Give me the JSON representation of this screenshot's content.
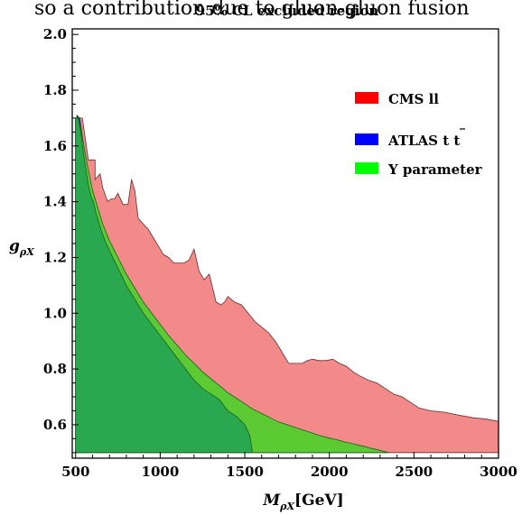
{
  "background_text": "so a contribution due to gluon-gluon fusion",
  "chart_data": {
    "type": "area",
    "title": "95% CL excluded region",
    "xlabel": "M",
    "xlabel_sub": "ρX",
    "xlabel_unit": "[GeV]",
    "ylabel": "g",
    "ylabel_sub": "ρX",
    "xlim": [
      480,
      3000
    ],
    "ylim": [
      0.48,
      2.02
    ],
    "x_ticks": [
      {
        "value": 500,
        "label": "500"
      },
      {
        "value": 1000,
        "label": "1000"
      },
      {
        "value": 1500,
        "label": "1500"
      },
      {
        "value": 2000,
        "label": "2000"
      },
      {
        "value": 2500,
        "label": "2500"
      },
      {
        "value": 3000,
        "label": "3000"
      }
    ],
    "y_ticks": [
      {
        "value": 0.6,
        "label": "0.6"
      },
      {
        "value": 0.8,
        "label": "0.8"
      },
      {
        "value": 1.0,
        "label": "1.0"
      },
      {
        "value": 1.2,
        "label": "1.2"
      },
      {
        "value": 1.4,
        "label": "1.4"
      },
      {
        "value": 1.6,
        "label": "1.6"
      },
      {
        "value": 1.8,
        "label": "1.8"
      },
      {
        "value": 2.0,
        "label": "2.0"
      }
    ],
    "grid": false,
    "legend_position": "top-right",
    "series": [
      {
        "name": "CMS ll",
        "color": "#ff0000",
        "fill": "#f28a8a",
        "points": [
          [
            500,
            0.5
          ],
          [
            500,
            1.7
          ],
          [
            540,
            1.7
          ],
          [
            575,
            1.55
          ],
          [
            615,
            1.55
          ],
          [
            615,
            1.48
          ],
          [
            645,
            1.5
          ],
          [
            660,
            1.45
          ],
          [
            690,
            1.4
          ],
          [
            710,
            1.41
          ],
          [
            730,
            1.41
          ],
          [
            750,
            1.43
          ],
          [
            780,
            1.39
          ],
          [
            810,
            1.39
          ],
          [
            830,
            1.48
          ],
          [
            850,
            1.44
          ],
          [
            870,
            1.34
          ],
          [
            900,
            1.32
          ],
          [
            930,
            1.3
          ],
          [
            960,
            1.27
          ],
          [
            990,
            1.24
          ],
          [
            1020,
            1.21
          ],
          [
            1050,
            1.2
          ],
          [
            1080,
            1.18
          ],
          [
            1110,
            1.18
          ],
          [
            1140,
            1.18
          ],
          [
            1170,
            1.19
          ],
          [
            1200,
            1.23
          ],
          [
            1230,
            1.15
          ],
          [
            1260,
            1.12
          ],
          [
            1290,
            1.14
          ],
          [
            1310,
            1.09
          ],
          [
            1330,
            1.04
          ],
          [
            1360,
            1.03
          ],
          [
            1380,
            1.04
          ],
          [
            1400,
            1.06
          ],
          [
            1440,
            1.04
          ],
          [
            1480,
            1.03
          ],
          [
            1520,
            1.0
          ],
          [
            1560,
            0.97
          ],
          [
            1600,
            0.95
          ],
          [
            1640,
            0.93
          ],
          [
            1680,
            0.9
          ],
          [
            1720,
            0.86
          ],
          [
            1760,
            0.82
          ],
          [
            1800,
            0.82
          ],
          [
            1840,
            0.82
          ],
          [
            1870,
            0.83
          ],
          [
            1900,
            0.835
          ],
          [
            1940,
            0.83
          ],
          [
            1980,
            0.83
          ],
          [
            2020,
            0.835
          ],
          [
            2060,
            0.82
          ],
          [
            2100,
            0.81
          ],
          [
            2140,
            0.79
          ],
          [
            2180,
            0.775
          ],
          [
            2230,
            0.76
          ],
          [
            2280,
            0.75
          ],
          [
            2330,
            0.73
          ],
          [
            2380,
            0.71
          ],
          [
            2430,
            0.7
          ],
          [
            2480,
            0.68
          ],
          [
            2530,
            0.66
          ],
          [
            2600,
            0.65
          ],
          [
            2680,
            0.645
          ],
          [
            2760,
            0.635
          ],
          [
            2850,
            0.625
          ],
          [
            2930,
            0.62
          ],
          [
            3000,
            0.612
          ],
          [
            3000,
            0.5
          ]
        ]
      },
      {
        "name": "ATLAS t t̄",
        "name_main": "ATLAS ",
        "name_tt": "t t",
        "color": "#0000ff",
        "fill": "#2020d8",
        "points": [
          [
            500,
            1.68
          ],
          [
            508,
            1.71
          ],
          [
            525,
            1.7
          ],
          [
            548,
            1.6
          ],
          [
            565,
            1.52
          ],
          [
            580,
            1.45
          ],
          [
            585,
            1.44
          ],
          [
            560,
            1.48
          ],
          [
            535,
            1.56
          ],
          [
            512,
            1.63
          ],
          [
            500,
            1.66
          ]
        ]
      },
      {
        "name": "Y parameter",
        "color": "#00ff00",
        "fill": "#5ccb33",
        "points": [
          [
            500,
            0.5
          ],
          [
            500,
            1.7
          ],
          [
            515,
            1.7
          ],
          [
            540,
            1.63
          ],
          [
            560,
            1.56
          ],
          [
            580,
            1.5
          ],
          [
            600,
            1.44
          ],
          [
            630,
            1.38
          ],
          [
            660,
            1.32
          ],
          [
            700,
            1.26
          ],
          [
            750,
            1.2
          ],
          [
            800,
            1.14
          ],
          [
            850,
            1.09
          ],
          [
            900,
            1.04
          ],
          [
            950,
            1.0
          ],
          [
            1000,
            0.96
          ],
          [
            1050,
            0.92
          ],
          [
            1100,
            0.885
          ],
          [
            1150,
            0.85
          ],
          [
            1200,
            0.82
          ],
          [
            1250,
            0.79
          ],
          [
            1300,
            0.765
          ],
          [
            1350,
            0.74
          ],
          [
            1400,
            0.715
          ],
          [
            1450,
            0.695
          ],
          [
            1500,
            0.675
          ],
          [
            1550,
            0.655
          ],
          [
            1600,
            0.64
          ],
          [
            1650,
            0.625
          ],
          [
            1700,
            0.61
          ],
          [
            1750,
            0.6
          ],
          [
            1800,
            0.59
          ],
          [
            1850,
            0.58
          ],
          [
            1900,
            0.57
          ],
          [
            1950,
            0.56
          ],
          [
            2000,
            0.552
          ],
          [
            2050,
            0.545
          ],
          [
            2100,
            0.537
          ],
          [
            2150,
            0.53
          ],
          [
            2200,
            0.523
          ],
          [
            2250,
            0.515
          ],
          [
            2300,
            0.508
          ],
          [
            2350,
            0.5
          ]
        ]
      },
      {
        "name": "",
        "color": "#1e9c40",
        "fill": "#2aa84f",
        "points": [
          [
            500,
            0.5
          ],
          [
            500,
            1.7
          ],
          [
            515,
            1.7
          ],
          [
            530,
            1.65
          ],
          [
            545,
            1.58
          ],
          [
            560,
            1.52
          ],
          [
            575,
            1.46
          ],
          [
            590,
            1.42
          ],
          [
            605,
            1.4
          ],
          [
            620,
            1.36
          ],
          [
            650,
            1.3
          ],
          [
            680,
            1.25
          ],
          [
            720,
            1.2
          ],
          [
            760,
            1.15
          ],
          [
            800,
            1.1
          ],
          [
            850,
            1.05
          ],
          [
            900,
            1.0
          ],
          [
            950,
            0.96
          ],
          [
            1000,
            0.92
          ],
          [
            1050,
            0.88
          ],
          [
            1100,
            0.84
          ],
          [
            1150,
            0.8
          ],
          [
            1200,
            0.76
          ],
          [
            1250,
            0.73
          ],
          [
            1300,
            0.71
          ],
          [
            1350,
            0.69
          ],
          [
            1400,
            0.65
          ],
          [
            1450,
            0.63
          ],
          [
            1500,
            0.6
          ],
          [
            1530,
            0.56
          ],
          [
            1545,
            0.5
          ]
        ]
      }
    ]
  }
}
